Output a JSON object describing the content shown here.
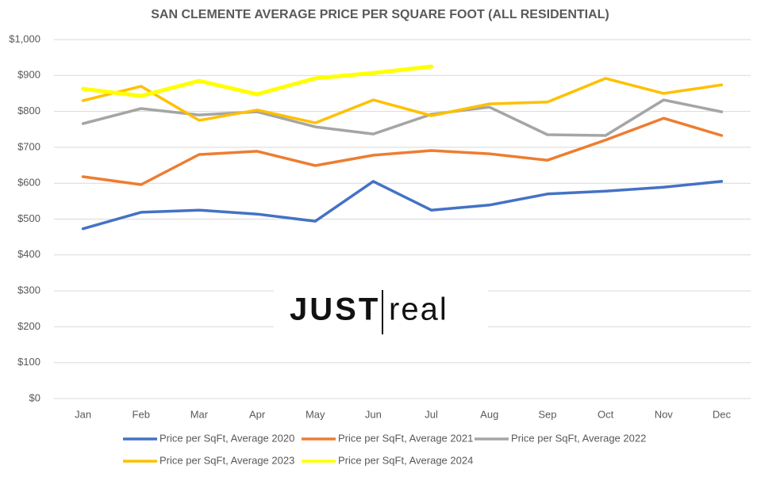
{
  "chart_data": {
    "type": "line",
    "title": "SAN CLEMENTE AVERAGE PRICE PER SQUARE FOOT (ALL RESIDENTIAL)",
    "categories": [
      "Jan",
      "Feb",
      "Mar",
      "Apr",
      "May",
      "Jun",
      "Jul",
      "Aug",
      "Sep",
      "Oct",
      "Nov",
      "Dec"
    ],
    "series": [
      {
        "name": "Price per SqFt, Average 2020",
        "color": "#4472c4",
        "values": [
          473,
          519,
          525,
          514,
          494,
          605,
          525,
          539,
          570,
          578,
          589,
          605
        ]
      },
      {
        "name": "Price per SqFt, Average 2021",
        "color": "#ed7d31",
        "values": [
          618,
          596,
          680,
          689,
          649,
          678,
          691,
          682,
          664,
          720,
          781,
          733
        ]
      },
      {
        "name": "Price per SqFt, Average 2022",
        "color": "#a5a5a5",
        "values": [
          766,
          808,
          790,
          799,
          757,
          737,
          792,
          812,
          735,
          733,
          832,
          799
        ]
      },
      {
        "name": "Price per SqFt, Average 2023",
        "color": "#ffc000",
        "values": [
          830,
          870,
          775,
          804,
          768,
          832,
          788,
          821,
          826,
          892,
          850,
          874
        ]
      },
      {
        "name": "Price per SqFt, Average 2024",
        "color": "#ffff00",
        "values": [
          863,
          843,
          885,
          848,
          892,
          907,
          925,
          null,
          null,
          null,
          null,
          null
        ]
      }
    ],
    "ylim": [
      0,
      1000
    ],
    "yticks": [
      {
        "value": 0,
        "label": "$0"
      },
      {
        "value": 100,
        "label": "$100"
      },
      {
        "value": 200,
        "label": "$200"
      },
      {
        "value": 300,
        "label": "$300"
      },
      {
        "value": 400,
        "label": "$400"
      },
      {
        "value": 500,
        "label": "$500"
      },
      {
        "value": 600,
        "label": "$600"
      },
      {
        "value": 700,
        "label": "$700"
      },
      {
        "value": 800,
        "label": "$800"
      },
      {
        "value": 900,
        "label": "$900"
      },
      {
        "value": 1000,
        "label": "$1,000"
      }
    ],
    "grid": true,
    "legend": "bottom",
    "annotations": [
      "JUST",
      "real"
    ]
  }
}
